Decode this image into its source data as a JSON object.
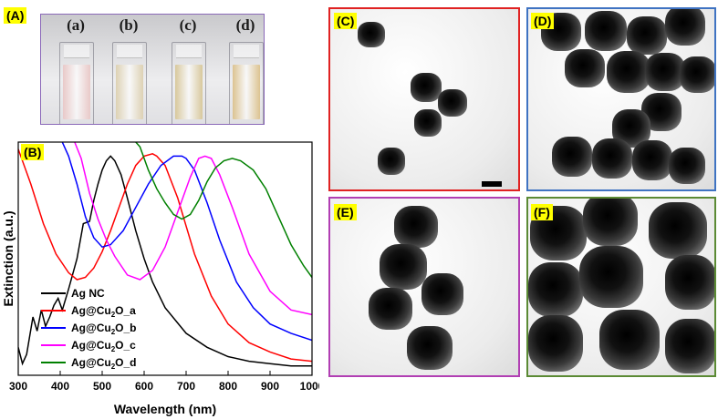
{
  "panels": {
    "A": "(A)",
    "B": "(B)",
    "C": "(C)",
    "D": "(D)",
    "E": "(E)",
    "F": "(F)"
  },
  "photo": {
    "vials": [
      {
        "label": "(a)",
        "color": "#e9c9c8"
      },
      {
        "label": "(b)",
        "color": "#ddd1b3"
      },
      {
        "label": "(c)",
        "color": "#d8c89c"
      },
      {
        "label": "(d)",
        "color": "#dcc391"
      }
    ],
    "frame_color": "#8a68b8"
  },
  "tem_frames": {
    "C": "#e02222",
    "D": "#3f73c2",
    "E": "#b13fb3",
    "F": "#5b8a34"
  },
  "chart_data": {
    "type": "line",
    "title": "",
    "xlabel": "Wavelength (nm)",
    "ylabel": "Extinction (a.u.)",
    "xlim": [
      300,
      1000
    ],
    "xticks": [
      300,
      400,
      500,
      600,
      700,
      800,
      900,
      1000
    ],
    "ylim": [
      0,
      1
    ],
    "legend_position": "bottom-left",
    "series": [
      {
        "name": "Ag NC",
        "legend_parts": [
          "Ag NC",
          "",
          "",
          ""
        ],
        "color": "#000000",
        "x": [
          300,
          310,
          320,
          335,
          345,
          355,
          365,
          375,
          385,
          395,
          405,
          420,
          440,
          455,
          470,
          480,
          490,
          500,
          510,
          520,
          530,
          545,
          560,
          580,
          600,
          620,
          650,
          700,
          750,
          800,
          850,
          900,
          950,
          1000
        ],
        "y": [
          0.12,
          0.05,
          0.09,
          0.25,
          0.19,
          0.28,
          0.21,
          0.25,
          0.3,
          0.33,
          0.28,
          0.37,
          0.5,
          0.65,
          0.66,
          0.75,
          0.82,
          0.88,
          0.92,
          0.94,
          0.92,
          0.86,
          0.76,
          0.62,
          0.5,
          0.4,
          0.29,
          0.18,
          0.12,
          0.08,
          0.06,
          0.05,
          0.04,
          0.04
        ]
      },
      {
        "name": "Ag@Cu2O_a",
        "legend_parts": [
          "Ag@Cu",
          "2",
          "O_a",
          ""
        ],
        "color": "#ff0000",
        "x": [
          300,
          330,
          360,
          390,
          420,
          440,
          460,
          480,
          500,
          520,
          540,
          560,
          580,
          600,
          620,
          630,
          650,
          680,
          720,
          760,
          800,
          850,
          900,
          950,
          1000
        ],
        "y": [
          0.97,
          0.82,
          0.65,
          0.52,
          0.44,
          0.41,
          0.42,
          0.46,
          0.53,
          0.62,
          0.72,
          0.82,
          0.9,
          0.94,
          0.95,
          0.94,
          0.9,
          0.76,
          0.52,
          0.34,
          0.22,
          0.14,
          0.1,
          0.07,
          0.06
        ]
      },
      {
        "name": "Ag@Cu2O_b",
        "legend_parts": [
          "Ag@Cu",
          "2",
          "O_b",
          ""
        ],
        "color": "#0000ff",
        "x": [
          400,
          420,
          440,
          460,
          480,
          500,
          520,
          550,
          580,
          610,
          640,
          670,
          690,
          700,
          720,
          750,
          780,
          820,
          860,
          900,
          950,
          1000
        ],
        "y": [
          1.02,
          0.94,
          0.82,
          0.68,
          0.59,
          0.55,
          0.56,
          0.62,
          0.72,
          0.82,
          0.9,
          0.94,
          0.94,
          0.93,
          0.88,
          0.74,
          0.58,
          0.4,
          0.29,
          0.22,
          0.18,
          0.15
        ]
      },
      {
        "name": "Ag@Cu2O_c",
        "legend_parts": [
          "Ag@Cu",
          "2",
          "O_c",
          ""
        ],
        "color": "#ff00ff",
        "x": [
          430,
          450,
          470,
          490,
          510,
          530,
          560,
          590,
          620,
          650,
          680,
          710,
          730,
          745,
          760,
          780,
          810,
          850,
          900,
          950,
          1000
        ],
        "y": [
          1.02,
          0.93,
          0.78,
          0.67,
          0.58,
          0.51,
          0.43,
          0.41,
          0.45,
          0.55,
          0.7,
          0.85,
          0.93,
          0.94,
          0.93,
          0.86,
          0.72,
          0.52,
          0.36,
          0.28,
          0.26
        ]
      },
      {
        "name": "Ag@Cu2O_d",
        "legend_parts": [
          "Ag@Cu",
          "2",
          "O_d",
          ""
        ],
        "color": "#008000",
        "x": [
          570,
          590,
          610,
          630,
          650,
          670,
          690,
          710,
          730,
          750,
          770,
          790,
          810,
          830,
          860,
          890,
          920,
          950,
          980,
          1000
        ],
        "y": [
          1.02,
          0.98,
          0.88,
          0.8,
          0.74,
          0.69,
          0.67,
          0.69,
          0.75,
          0.83,
          0.89,
          0.92,
          0.93,
          0.92,
          0.88,
          0.8,
          0.68,
          0.56,
          0.47,
          0.42
        ]
      }
    ]
  }
}
